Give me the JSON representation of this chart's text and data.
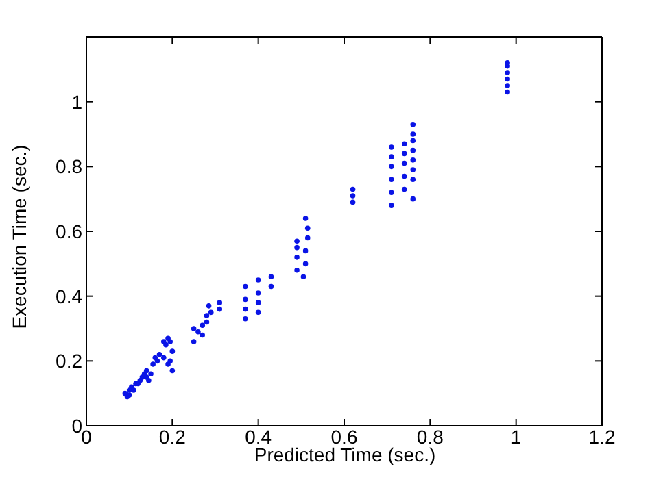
{
  "chart_data": {
    "type": "scatter",
    "xlabel": "Predicted Time (sec.)",
    "ylabel": "Execution Time (sec.)",
    "xlim": [
      0,
      1.2
    ],
    "xticks": [
      0,
      0.2,
      0.4,
      0.6,
      0.8,
      1,
      1.2
    ],
    "ylim": [
      0,
      1.2
    ],
    "yticks": [
      0,
      0.2,
      0.4,
      0.6,
      0.8,
      1
    ],
    "legend": false,
    "marker": "circle",
    "series": [
      {
        "color": "#0a14e6",
        "x": [
          0.09,
          0.095,
          0.1,
          0.1,
          0.105,
          0.11,
          0.115,
          0.12,
          0.125,
          0.13,
          0.135,
          0.14,
          0.14,
          0.145,
          0.15,
          0.155,
          0.16,
          0.165,
          0.17,
          0.18,
          0.185,
          0.19,
          0.195,
          0.18,
          0.19,
          0.195,
          0.2,
          0.2,
          0.25,
          0.25,
          0.26,
          0.27,
          0.27,
          0.28,
          0.28,
          0.285,
          0.29,
          0.31,
          0.31,
          0.37,
          0.37,
          0.37,
          0.37,
          0.4,
          0.4,
          0.4,
          0.4,
          0.43,
          0.43,
          0.49,
          0.49,
          0.49,
          0.49,
          0.505,
          0.51,
          0.51,
          0.515,
          0.515,
          0.51,
          0.62,
          0.62,
          0.62,
          0.71,
          0.71,
          0.71,
          0.71,
          0.71,
          0.71,
          0.74,
          0.74,
          0.74,
          0.74,
          0.74,
          0.76,
          0.76,
          0.76,
          0.76,
          0.76,
          0.76,
          0.76,
          0.76,
          0.98,
          0.98,
          0.98,
          0.98,
          0.98,
          0.98
        ],
        "values": [
          0.1,
          0.09,
          0.11,
          0.095,
          0.12,
          0.11,
          0.13,
          0.13,
          0.14,
          0.15,
          0.16,
          0.15,
          0.17,
          0.14,
          0.16,
          0.19,
          0.21,
          0.2,
          0.22,
          0.26,
          0.25,
          0.27,
          0.26,
          0.21,
          0.19,
          0.2,
          0.17,
          0.23,
          0.26,
          0.3,
          0.29,
          0.28,
          0.31,
          0.32,
          0.34,
          0.37,
          0.35,
          0.36,
          0.38,
          0.33,
          0.36,
          0.39,
          0.43,
          0.35,
          0.38,
          0.41,
          0.45,
          0.43,
          0.46,
          0.48,
          0.52,
          0.55,
          0.57,
          0.46,
          0.5,
          0.54,
          0.58,
          0.61,
          0.64,
          0.69,
          0.71,
          0.73,
          0.68,
          0.72,
          0.76,
          0.8,
          0.83,
          0.86,
          0.73,
          0.77,
          0.81,
          0.84,
          0.87,
          0.7,
          0.76,
          0.79,
          0.82,
          0.85,
          0.88,
          0.9,
          0.93,
          1.03,
          1.05,
          1.07,
          1.09,
          1.11,
          1.12
        ]
      }
    ]
  }
}
